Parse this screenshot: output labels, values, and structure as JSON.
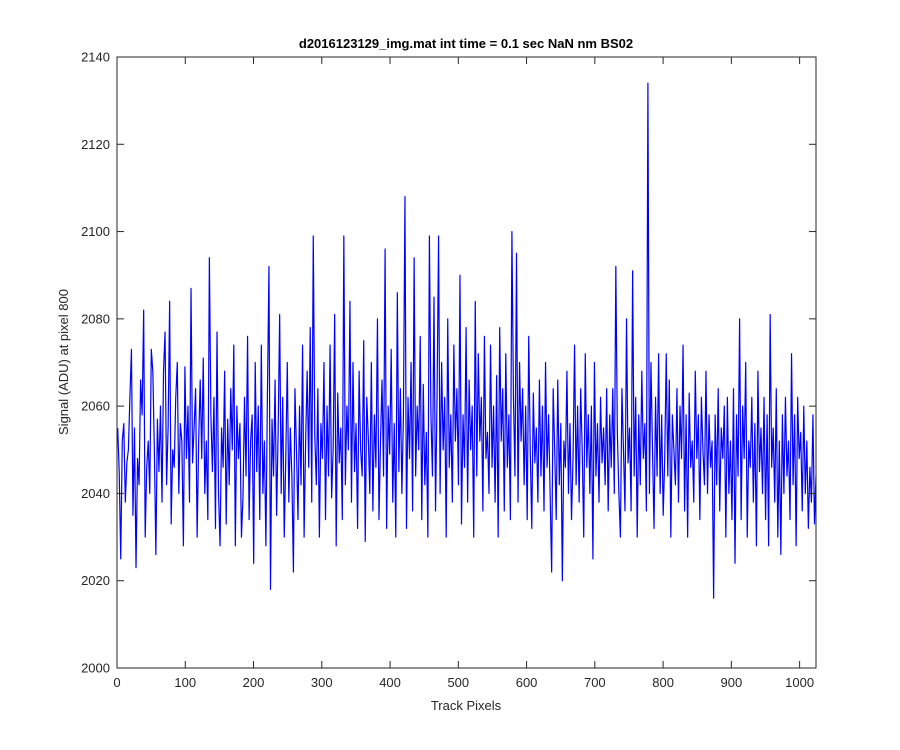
{
  "chart_data": {
    "type": "line",
    "title": "d2016123129_img.mat int time = 0.1 sec  NaN nm BS02",
    "xlabel": "Track Pixels",
    "ylabel": "Signal (ADU) at pixel 800",
    "xlim": [
      0,
      1024
    ],
    "ylim": [
      2000,
      2140
    ],
    "xticks": [
      0,
      100,
      200,
      300,
      400,
      500,
      600,
      700,
      800,
      900,
      1000
    ],
    "yticks": [
      2000,
      2020,
      2040,
      2060,
      2080,
      2100,
      2120,
      2140
    ],
    "grid": false,
    "series": [
      {
        "color": "#0000ff",
        "x_start": 1,
        "x_step": 1,
        "values": [
          2055,
          2045,
          2025,
          2052,
          2056,
          2038,
          2047,
          2050,
          2062,
          2073,
          2035,
          2055,
          2023,
          2048,
          2042,
          2066,
          2058,
          2082,
          2030,
          2046,
          2052,
          2040,
          2073,
          2068,
          2050,
          2026,
          2057,
          2045,
          2060,
          2038,
          2068,
          2077,
          2042,
          2055,
          2084,
          2033,
          2050,
          2046,
          2062,
          2070,
          2040,
          2056,
          2052,
          2028,
          2069,
          2048,
          2060,
          2038,
          2087,
          2047,
          2055,
          2064,
          2030,
          2052,
          2066,
          2048,
          2071,
          2040,
          2052,
          2034,
          2094,
          2058,
          2045,
          2062,
          2032,
          2077,
          2040,
          2028,
          2055,
          2046,
          2068,
          2033,
          2057,
          2042,
          2064,
          2050,
          2074,
          2028,
          2060,
          2048,
          2056,
          2030,
          2039,
          2062,
          2044,
          2076,
          2034,
          2052,
          2058,
          2024,
          2070,
          2045,
          2060,
          2034,
          2074,
          2040,
          2052,
          2028,
          2063,
          2092,
          2018,
          2057,
          2044,
          2066,
          2035,
          2054,
          2081,
          2040,
          2062,
          2030,
          2048,
          2070,
          2038,
          2055,
          2044,
          2022,
          2064,
          2050,
          2034,
          2060,
          2042,
          2074,
          2030,
          2052,
          2068,
          2046,
          2078,
          2038,
          2099,
          2053,
          2042,
          2064,
          2030,
          2056,
          2048,
          2070,
          2034,
          2060,
          2044,
          2074,
          2039,
          2050,
          2081,
          2028,
          2063,
          2047,
          2055,
          2034,
          2099,
          2042,
          2060,
          2050,
          2084,
          2038,
          2070,
          2045,
          2056,
          2032,
          2068,
          2050,
          2044,
          2075,
          2029,
          2062,
          2053,
          2040,
          2070,
          2036,
          2058,
          2046,
          2080,
          2034,
          2052,
          2066,
          2044,
          2096,
          2032,
          2060,
          2049,
          2073,
          2038,
          2056,
          2030,
          2086,
          2045,
          2064,
          2040,
          2058,
          2108,
          2032,
          2062,
          2048,
          2070,
          2036,
          2094,
          2044,
          2060,
          2050,
          2076,
          2034,
          2065,
          2042,
          2054,
          2030,
          2099,
          2058,
          2044,
          2085,
          2036,
          2062,
          2099,
          2040,
          2070,
          2050,
          2062,
          2030,
          2080,
          2046,
          2058,
          2038,
          2074,
          2052,
          2064,
          2042,
          2090,
          2033,
          2058,
          2046,
          2078,
          2038,
          2066,
          2050,
          2060,
          2030,
          2084,
          2044,
          2072,
          2052,
          2062,
          2036,
          2076,
          2048,
          2054,
          2040,
          2074,
          2046,
          2060,
          2038,
          2067,
          2030,
          2078,
          2052,
          2064,
          2036,
          2072,
          2046,
          2058,
          2034,
          2100,
          2062,
          2044,
          2095,
          2038,
          2070,
          2052,
          2064,
          2042,
          2060,
          2034,
          2076,
          2050,
          2032,
          2063,
          2047,
          2055,
          2038,
          2066,
          2044,
          2060,
          2036,
          2070,
          2046,
          2058,
          2040,
          2022,
          2064,
          2050,
          2034,
          2066,
          2042,
          2056,
          2020,
          2052,
          2046,
          2068,
          2040,
          2056,
          2034,
          2048,
          2074,
          2042,
          2060,
          2038,
          2064,
          2050,
          2030,
          2072,
          2046,
          2058,
          2040,
          2060,
          2025,
          2070,
          2044,
          2056,
          2038,
          2062,
          2047,
          2055,
          2042,
          2064,
          2036,
          2058,
          2046,
          2064,
          2040,
          2092,
          2054,
          2040,
          2030,
          2064,
          2050,
          2036,
          2080,
          2047,
          2055,
          2036,
          2091,
          2044,
          2062,
          2030,
          2058,
          2042,
          2068,
          2048,
          2056,
          2036,
          2134,
          2040,
          2070,
          2050,
          2032,
          2062,
          2044,
          2072,
          2040,
          2058,
          2035,
          2048,
          2072,
          2044,
          2066,
          2030,
          2058,
          2050,
          2042,
          2064,
          2038,
          2060,
          2048,
          2074,
          2036,
          2058,
          2030,
          2063,
          2046,
          2052,
          2038,
          2068,
          2048,
          2058,
          2034,
          2062,
          2050,
          2042,
          2068,
          2040,
          2058,
          2046,
          2052,
          2016,
          2058,
          2042,
          2064,
          2036,
          2055,
          2048,
          2060,
          2030,
          2062,
          2040,
          2052,
          2034,
          2064,
          2024,
          2058,
          2044,
          2080,
          2034,
          2060,
          2048,
          2070,
          2030,
          2052,
          2046,
          2062,
          2038,
          2056,
          2028,
          2068,
          2045,
          2055,
          2040,
          2062,
          2034,
          2058,
          2028,
          2081,
          2046,
          2055,
          2038,
          2064,
          2030,
          2052,
          2026,
          2058,
          2040,
          2062,
          2044,
          2052,
          2034,
          2072,
          2042,
          2058,
          2028,
          2062,
          2048,
          2054,
          2036,
          2060,
          2040,
          2052,
          2032,
          2046,
          2038,
          2058,
          2033,
          2044
        ]
      }
    ]
  }
}
